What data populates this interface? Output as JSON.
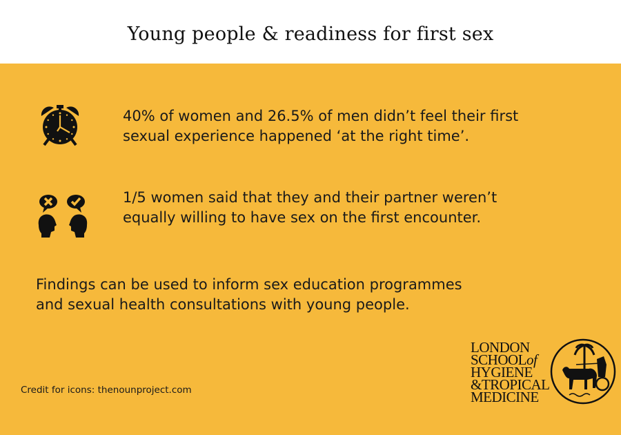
{
  "header": {
    "title": "Young people & readiness for first sex"
  },
  "facts": [
    {
      "icon": "alarm-clock-icon",
      "line1": "40% of women and 26.5% of men didn’t feel their first",
      "line2": "sexual experience happened ‘at the right time’."
    },
    {
      "icon": "heads-disagree-icon",
      "line1": "1/5 women said that they and their partner weren’t",
      "line2": "equally willing to have sex on the first encounter."
    }
  ],
  "findings": {
    "line1": "Findings can be used to inform sex education programmes",
    "line2": "and sexual health consultations with young people."
  },
  "credit": "Credit for icons: thenounproject.com",
  "logo": {
    "lines": [
      "LONDON",
      "SCHOOL",
      "of",
      "HYGIENE",
      "&TROPICAL",
      "MEDICINE"
    ]
  },
  "colors": {
    "background": "#f6b93b",
    "header": "#ffffff",
    "text": "#111111"
  }
}
